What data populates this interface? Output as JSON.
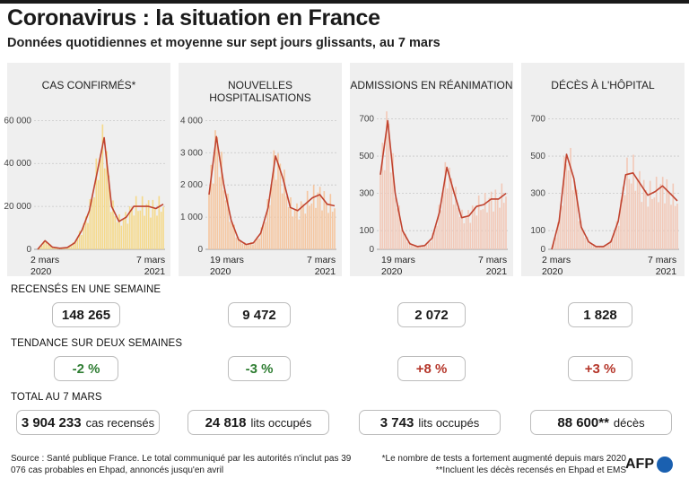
{
  "title": "Coronavirus : la situation en France",
  "subtitle": "Données quotidiennes et moyenne sur sept jours glissants, au 7 mars",
  "colors": {
    "bars_yellow": "#f5d98a",
    "bars_orange": "#f5c6a0",
    "bars_pink": "#f2c9b8",
    "line": "#c0432f",
    "up": "#b5362a",
    "down": "#2e7d32"
  },
  "chart_data": [
    {
      "type": "area",
      "title": "CAS CONFIRMÉS*",
      "yticks": [
        0,
        20000,
        40000,
        60000
      ],
      "ytick_labels": [
        "0",
        "20 000",
        "40 000",
        "60 000"
      ],
      "ylim": [
        0,
        66000
      ],
      "date_start_label": [
        "2 mars",
        "2020"
      ],
      "date_end_label": [
        "7 mars",
        "2021"
      ],
      "x": [
        "2020-03",
        "2020-04",
        "2020-05",
        "2020-06",
        "2020-07",
        "2020-08",
        "2020-09",
        "2020-10",
        "2020-10-20",
        "2020-11-01",
        "2020-11-15",
        "2020-12",
        "2020-12-20",
        "2021-01",
        "2021-01-20",
        "2021-02",
        "2021-02-20",
        "2021-03-07"
      ],
      "values": [
        0,
        4000,
        1000,
        500,
        800,
        3000,
        9000,
        18000,
        35000,
        52000,
        20000,
        13000,
        15000,
        20000,
        20000,
        20000,
        19000,
        21000
      ]
    },
    {
      "type": "area",
      "title": "NOUVELLES HOSPITALISATIONS",
      "yticks": [
        0,
        1000,
        2000,
        3000,
        4000
      ],
      "ytick_labels": [
        "0",
        "1 000",
        "2 000",
        "3 000",
        "4 000"
      ],
      "ylim": [
        0,
        4400
      ],
      "date_start_label": [
        "19 mars",
        "2020"
      ],
      "date_end_label": [
        "7 mars",
        "2021"
      ],
      "x": [
        "2020-03-19",
        "2020-04-01",
        "2020-04-15",
        "2020-05",
        "2020-06",
        "2020-07",
        "2020-08",
        "2020-09",
        "2020-10",
        "2020-11-01",
        "2020-11-15",
        "2020-12",
        "2020-12-20",
        "2021-01",
        "2021-01-20",
        "2021-02",
        "2021-02-20",
        "2021-03-07"
      ],
      "values": [
        1700,
        3500,
        2000,
        900,
        300,
        150,
        200,
        500,
        1300,
        2900,
        2200,
        1300,
        1200,
        1400,
        1600,
        1700,
        1400,
        1350
      ]
    },
    {
      "type": "area",
      "title": "ADMISSIONS EN RÉANIMATION",
      "yticks": [
        0,
        100,
        300,
        500,
        700
      ],
      "ytick_labels": [
        "0",
        "100",
        "300",
        "500",
        "700"
      ],
      "ylim": [
        0,
        760
      ],
      "date_start_label": [
        "19 mars",
        "2020"
      ],
      "date_end_label": [
        "7 mars",
        "2021"
      ],
      "x": [
        "2020-03-19",
        "2020-04-01",
        "2020-04-15",
        "2020-05",
        "2020-06",
        "2020-07",
        "2020-08",
        "2020-09",
        "2020-10",
        "2020-11-01",
        "2020-11-15",
        "2020-12",
        "2020-12-20",
        "2021-01",
        "2021-01-20",
        "2021-02",
        "2021-02-20",
        "2021-03-07"
      ],
      "values": [
        400,
        690,
        300,
        100,
        30,
        15,
        20,
        60,
        200,
        440,
        300,
        170,
        180,
        230,
        240,
        270,
        270,
        300
      ]
    },
    {
      "type": "area",
      "title": "DÉCÈS À L'HÔPITAL",
      "yticks": [
        0,
        100,
        300,
        500,
        700
      ],
      "ytick_labels": [
        "0",
        "100",
        "300",
        "500",
        "700"
      ],
      "ylim": [
        0,
        760
      ],
      "date_start_label": [
        "2 mars",
        "2020"
      ],
      "date_end_label": [
        "7 mars",
        "2021"
      ],
      "x": [
        "2020-03-02",
        "2020-03-20",
        "2020-04-05",
        "2020-04-20",
        "2020-05",
        "2020-06",
        "2020-07",
        "2020-08",
        "2020-09",
        "2020-10",
        "2020-11-01",
        "2020-11-15",
        "2020-12",
        "2020-12-20",
        "2021-01",
        "2021-01-20",
        "2021-02",
        "2021-03-07"
      ],
      "values": [
        0,
        150,
        510,
        380,
        120,
        40,
        15,
        15,
        40,
        150,
        400,
        410,
        350,
        290,
        310,
        340,
        300,
        260
      ]
    }
  ],
  "sections": {
    "weekly": "RECENSÉS EN UNE SEMAINE",
    "trend": "TENDANCE SUR DEUX SEMAINES",
    "total": "TOTAL AU 7 MARS"
  },
  "weekly_values": [
    "148 265",
    "9 472",
    "2 072",
    "1 828"
  ],
  "trend_values": [
    "-2 %",
    "-3 %",
    "+8 %",
    "+3 %"
  ],
  "totals": [
    {
      "value": "3 904 233",
      "unit": "cas recensés"
    },
    {
      "value": "24 818",
      "unit": "lits occupés"
    },
    {
      "value": "3 743",
      "unit": "lits occupés"
    },
    {
      "value": "88 600**",
      "unit": "décès"
    }
  ],
  "source": "Source : Santé publique France. Le total communiqué par les autorités n'inclut pas 39 076 cas probables en Ehpad, annoncés jusqu'en avril",
  "notes": [
    "*Le nombre de tests a fortement augmenté depuis mars 2020",
    "**Incluent les décès recensés en Ehpad et EMS"
  ],
  "logo": "AFP"
}
